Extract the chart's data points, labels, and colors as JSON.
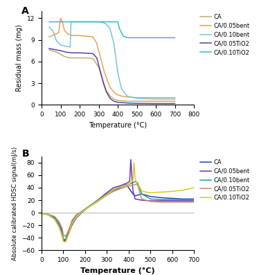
{
  "panel_a": {
    "title": "A",
    "xlabel": "Temperature (°C)",
    "ylabel": "Residual mass (mg)",
    "xlim": [
      0,
      800
    ],
    "ylim": [
      0,
      13
    ],
    "yticks": [
      0,
      3,
      6,
      9,
      12
    ],
    "xticks": [
      0,
      100,
      200,
      300,
      400,
      500,
      600,
      700,
      800
    ],
    "series": {
      "CA": {
        "color": "#c8a96e",
        "x": [
          40,
          80,
          100,
          120,
          140,
          160,
          200,
          240,
          270,
          300,
          320,
          340,
          360,
          380,
          400,
          450,
          500,
          600,
          700
        ],
        "y": [
          7.6,
          7.3,
          7.0,
          6.7,
          6.55,
          6.5,
          6.5,
          6.5,
          6.4,
          5.2,
          3.5,
          2.0,
          1.2,
          0.8,
          0.6,
          0.5,
          0.5,
          0.5,
          0.5
        ]
      },
      "CA/0.05bent": {
        "color": "#f0a050",
        "x": [
          40,
          90,
          100,
          110,
          120,
          140,
          160,
          200,
          240,
          270,
          290,
          310,
          330,
          360,
          390,
          420,
          450,
          500,
          600,
          700
        ],
        "y": [
          9.4,
          10.0,
          12.0,
          11.5,
          10.3,
          9.8,
          9.6,
          9.6,
          9.5,
          9.4,
          8.5,
          6.5,
          4.5,
          2.4,
          1.5,
          1.2,
          1.1,
          1.0,
          1.0,
          1.0
        ]
      },
      "CA/0.10bent": {
        "color": "#70c8d8",
        "x": [
          40,
          60,
          80,
          100,
          130,
          150,
          155,
          165,
          200,
          250,
          300,
          320,
          340,
          360,
          380,
          400,
          420,
          450,
          500,
          600,
          700
        ],
        "y": [
          10.8,
          10.2,
          8.8,
          8.3,
          8.1,
          8.0,
          11.5,
          11.5,
          11.5,
          11.5,
          11.5,
          11.4,
          11.2,
          10.5,
          8.5,
          4.5,
          2.2,
          1.2,
          0.9,
          0.8,
          0.8
        ]
      },
      "CA/0.05TiO2": {
        "color": "#5540a8",
        "x": [
          40,
          80,
          100,
          130,
          160,
          200,
          240,
          270,
          290,
          310,
          325,
          340,
          360,
          380,
          400,
          450,
          500,
          600,
          700
        ],
        "y": [
          7.8,
          7.6,
          7.5,
          7.3,
          7.2,
          7.2,
          7.15,
          7.1,
          6.5,
          4.5,
          3.0,
          1.8,
          0.9,
          0.5,
          0.35,
          0.25,
          0.2,
          0.18,
          0.18
        ]
      },
      "CA/0.10TiO2": {
        "color": "#35b8cc",
        "x": [
          40,
          100,
          150,
          200,
          250,
          300,
          350,
          400,
          410,
          430,
          450,
          500,
          600,
          700
        ],
        "y": [
          11.5,
          11.5,
          11.5,
          11.5,
          11.5,
          11.5,
          11.5,
          11.5,
          10.5,
          9.5,
          9.3,
          9.3,
          9.3,
          9.3
        ]
      }
    },
    "legend_order": [
      "CA",
      "CA/0.05bent",
      "CA/0.10bent",
      "CA/0.05TiO2",
      "CA/0.10TiO2"
    ]
  },
  "panel_b": {
    "title": "B",
    "xlabel": "Temperature (°C)",
    "ylabel": "Absolute calibrated HDSC signal(mJ/s)",
    "xlim": [
      0,
      700
    ],
    "ylim": [
      -60,
      90
    ],
    "yticks": [
      -60,
      -40,
      -20,
      0,
      20,
      40,
      60,
      80
    ],
    "xticks": [
      0,
      100,
      200,
      300,
      400,
      500,
      600,
      700
    ],
    "series": {
      "CA": {
        "color": "#2840b8",
        "x": [
          0,
          30,
          60,
          80,
          95,
          100,
          110,
          125,
          140,
          160,
          200,
          250,
          300,
          330,
          360,
          390,
          410,
          420,
          430,
          440,
          460,
          500,
          550,
          600,
          650,
          700
        ],
        "y": [
          -1,
          -3,
          -8,
          -18,
          -30,
          -43,
          -44,
          -32,
          -18,
          -8,
          5,
          18,
          30,
          36,
          40,
          45,
          35,
          30,
          27,
          28,
          30,
          26,
          24,
          23,
          22,
          22
        ]
      },
      "CA/0.05bent": {
        "color": "#7030c0",
        "x": [
          0,
          30,
          60,
          80,
          95,
          100,
          110,
          125,
          140,
          160,
          200,
          250,
          300,
          330,
          360,
          390,
          405,
          410,
          415,
          420,
          430,
          460,
          500,
          550,
          600,
          650,
          700
        ],
        "y": [
          -1,
          -3,
          -10,
          -22,
          -35,
          -44,
          -45,
          -33,
          -20,
          -8,
          5,
          18,
          32,
          40,
          43,
          47,
          50,
          85,
          60,
          35,
          22,
          20,
          19,
          19,
          19,
          19,
          19
        ]
      },
      "CA/0.10bent": {
        "color": "#20a090",
        "x": [
          0,
          30,
          60,
          80,
          95,
          100,
          110,
          125,
          140,
          160,
          200,
          250,
          300,
          330,
          360,
          390,
          420,
          430,
          440,
          450,
          460,
          500,
          550,
          600,
          650,
          700
        ],
        "y": [
          -1,
          -3,
          -10,
          -20,
          -38,
          -42,
          -43,
          -28,
          -14,
          -4,
          6,
          18,
          30,
          37,
          41,
          44,
          48,
          50,
          48,
          40,
          30,
          22,
          21,
          21,
          21,
          21
        ]
      },
      "CA/0.05TiO2": {
        "color": "#c09070",
        "x": [
          0,
          30,
          60,
          80,
          95,
          100,
          110,
          125,
          140,
          160,
          200,
          250,
          300,
          330,
          360,
          390,
          420,
          440,
          460,
          500,
          550,
          600,
          650,
          700
        ],
        "y": [
          -1,
          -2,
          -6,
          -14,
          -25,
          -35,
          -38,
          -28,
          -12,
          -3,
          5,
          16,
          28,
          34,
          38,
          42,
          44,
          46,
          22,
          18,
          17,
          17,
          17,
          17
        ]
      },
      "CA/0.10TiO2": {
        "color": "#d8cc20",
        "x": [
          0,
          30,
          60,
          80,
          95,
          100,
          110,
          125,
          140,
          160,
          200,
          250,
          300,
          330,
          360,
          390,
          410,
          420,
          425,
          430,
          440,
          450,
          460,
          480,
          500,
          550,
          600,
          650,
          700
        ],
        "y": [
          -1,
          -3,
          -10,
          -22,
          -36,
          -46,
          -47,
          -34,
          -18,
          -7,
          5,
          17,
          29,
          37,
          41,
          44,
          48,
          52,
          80,
          55,
          43,
          42,
          35,
          33,
          32,
          33,
          34,
          36,
          40
        ]
      }
    },
    "legend_order": [
      "CA",
      "CA/0.05bent",
      "CA/0.10bent",
      "CA/0.05TiO2",
      "CA/0.10TiO2"
    ]
  }
}
